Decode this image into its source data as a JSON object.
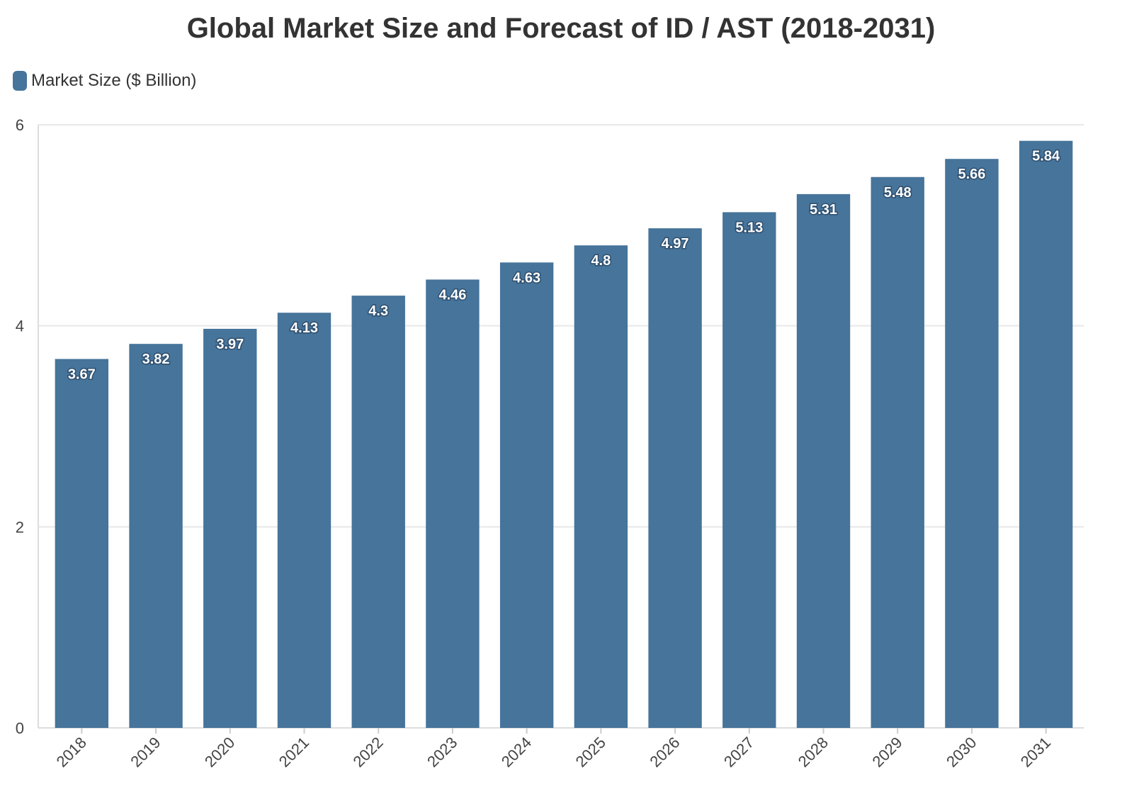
{
  "chart_data": {
    "type": "bar",
    "title": "Global Market Size and Forecast of ID / AST (2018-2031)",
    "xlabel": "",
    "ylabel": "",
    "categories": [
      "2018",
      "2019",
      "2020",
      "2021",
      "2022",
      "2023",
      "2024",
      "2025",
      "2026",
      "2027",
      "2028",
      "2029",
      "2030",
      "2031"
    ],
    "series": [
      {
        "name": "Market Size ($ Billion)",
        "values": [
          3.67,
          3.82,
          3.97,
          4.13,
          4.3,
          4.46,
          4.63,
          4.8,
          4.97,
          5.13,
          5.31,
          5.48,
          5.66,
          5.84
        ],
        "color": "#46749a"
      }
    ],
    "ylim": [
      0,
      6
    ],
    "yticks": [
      0,
      2,
      4,
      6
    ],
    "grid": true,
    "legend_position": "top-left"
  }
}
